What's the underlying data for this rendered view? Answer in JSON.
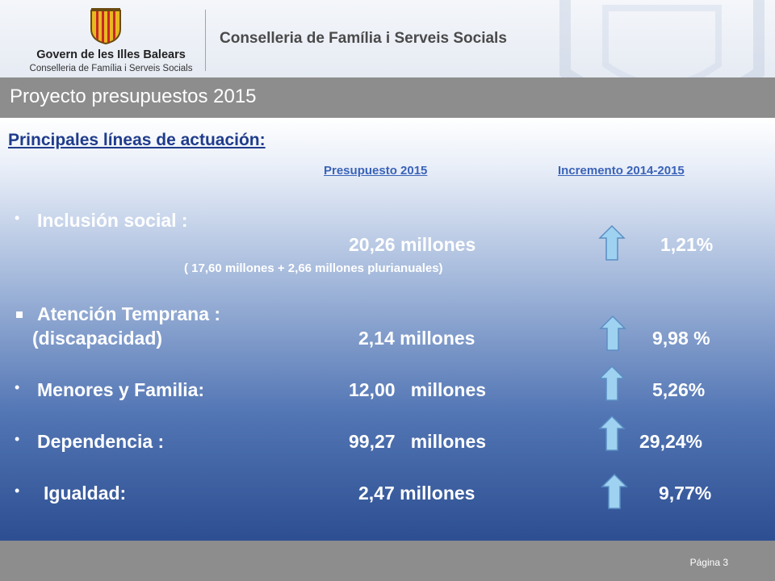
{
  "header": {
    "logo_title": "Govern de les Illes Balears",
    "logo_subtitle": "Conselleria de Família i Serveis Socials",
    "department": "Conselleria de Família i Serveis Socials"
  },
  "title_bar": {
    "title": "Proyecto presupuestos 2015"
  },
  "main": {
    "section_title": "Principales líneas de actuación:",
    "col_budget": "Presupuesto 2015",
    "col_increase": "Incremento 2014-2015",
    "items": [
      {
        "label": "Inclusión social :",
        "amount": "20,26 millones",
        "note": "( 17,60 millones + 2,66 millones plurianuales)",
        "increase": "1,21%",
        "arrow_icon": "up-arrow-icon"
      },
      {
        "label": "Atención Temprana :",
        "sublabel": "(discapacidad)",
        "amount": "2,14 millones",
        "increase": "9,98 %",
        "arrow_icon": "up-arrow-icon"
      },
      {
        "label": "Menores y Familia:",
        "amount": "12,00   millones",
        "increase": "5,26%",
        "arrow_icon": "up-arrow-icon"
      },
      {
        "label": "Dependencia :",
        "amount": "99,27   millones",
        "increase": "29,24%",
        "arrow_icon": "up-arrow-icon"
      },
      {
        "label": "Igualdad:",
        "amount": "2,47 millones",
        "increase": "9,77%",
        "arrow_icon": "up-arrow-icon"
      }
    ]
  },
  "footer": {
    "page": "Página 3"
  },
  "colors": {
    "title_bar": "#8d8d8d",
    "section_title": "#1f3c8c",
    "column_header": "#3a63b8",
    "arrow": "#9fd2f0"
  }
}
